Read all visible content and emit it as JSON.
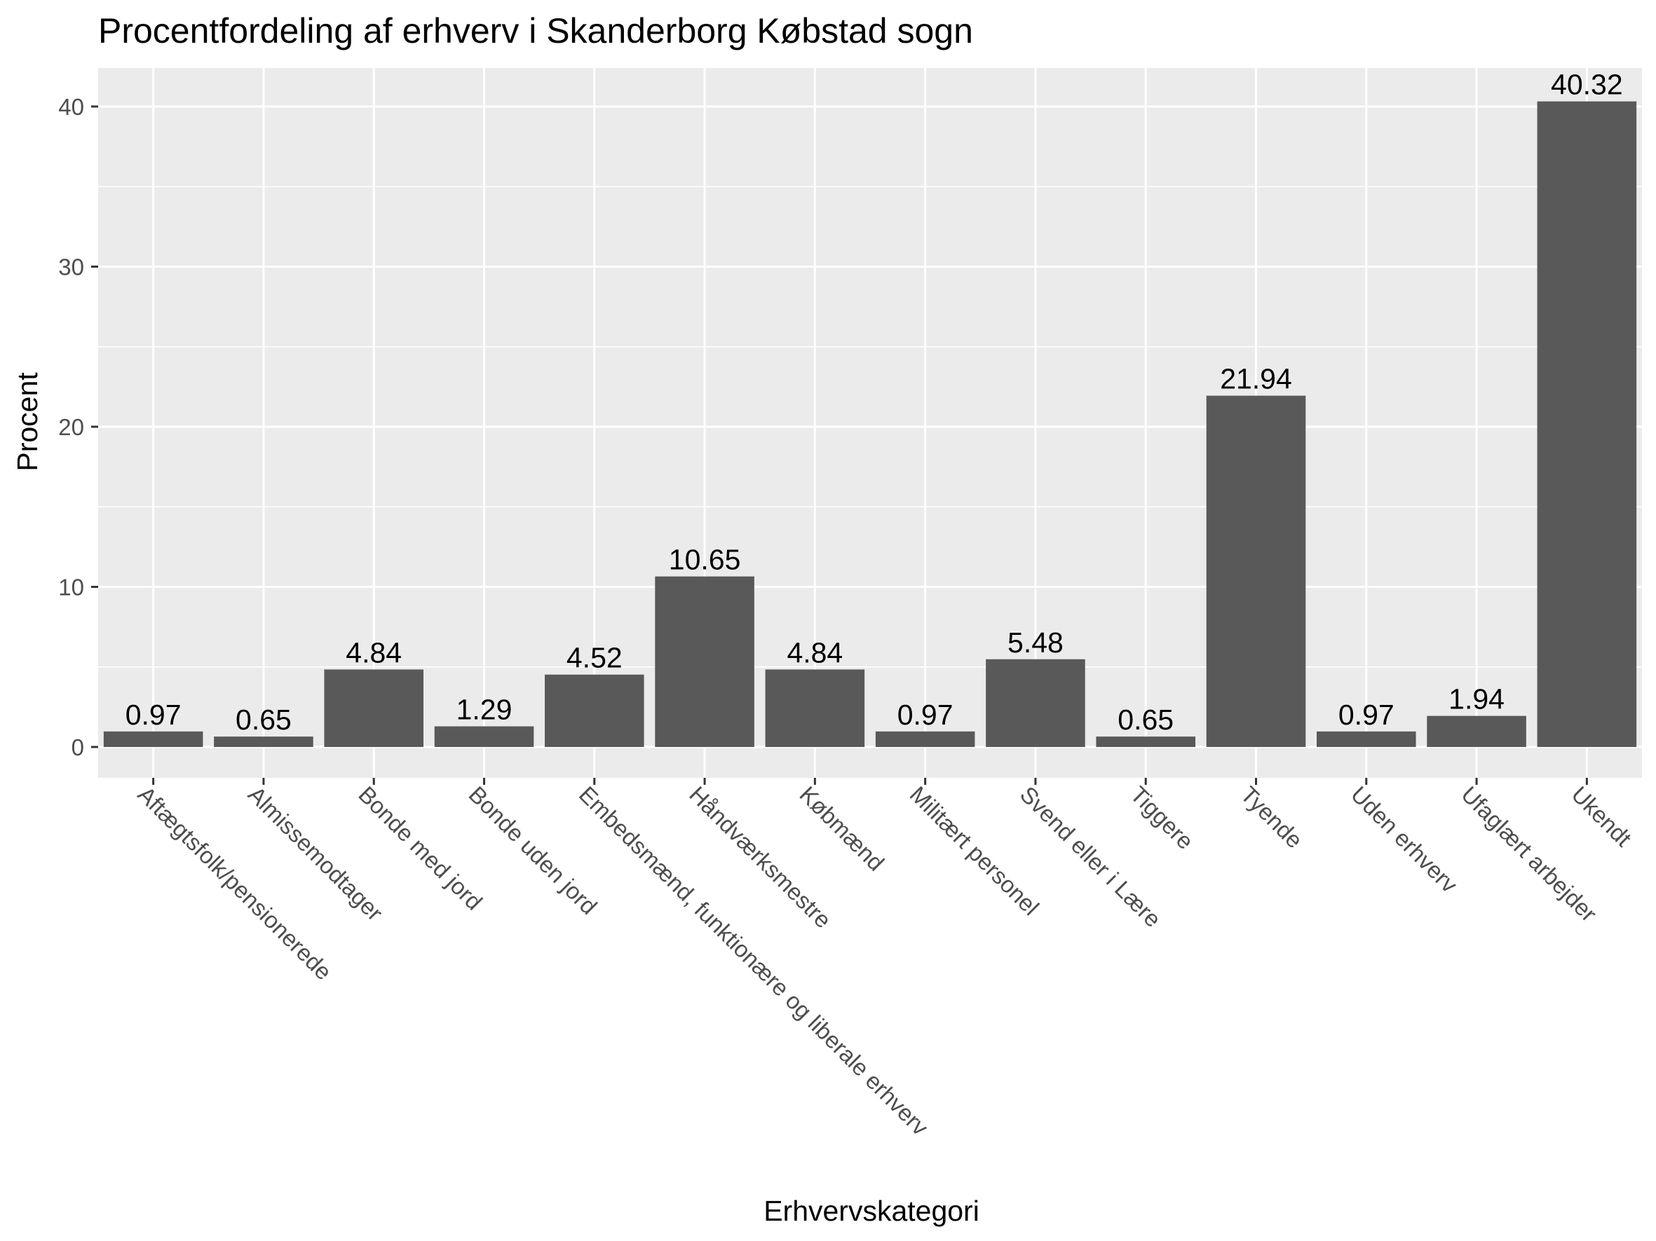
{
  "chart_data": {
    "type": "bar",
    "title": "Procentfordeling af erhverv i Skanderborg Købstad sogn",
    "xlabel": "Erhvervskategori",
    "ylabel": "Procent",
    "ylim": [
      0,
      42.5
    ],
    "yticks": [
      0,
      10,
      20,
      30,
      40
    ],
    "grid": true,
    "categories": [
      "Aftægtsfolk/pensionerede",
      "Almissemodtager",
      "Bonde med jord",
      "Bonde uden jord",
      "Embedsmænd, funktionære og liberale erhverv",
      "Håndværksmestre",
      "Købmænd",
      "Militært personel",
      "Svend eller i Lære",
      "Tiggere",
      "Tyende",
      "Uden erhverv",
      "Ufaglært arbejder",
      "Ukendt"
    ],
    "values": [
      0.97,
      0.65,
      4.84,
      1.29,
      4.52,
      10.65,
      4.84,
      0.97,
      5.48,
      0.65,
      21.94,
      0.97,
      1.94,
      40.32
    ],
    "value_labels": [
      "0.97",
      "0.65",
      "4.84",
      "1.29",
      "4.52",
      "10.65",
      "4.84",
      "0.97",
      "5.48",
      "0.65",
      "21.94",
      "0.97",
      "1.94",
      "40.32"
    ],
    "colors": {
      "panel": "#ebebeb",
      "grid": "#ffffff",
      "bar": "#595959",
      "tick": "#333333"
    }
  }
}
